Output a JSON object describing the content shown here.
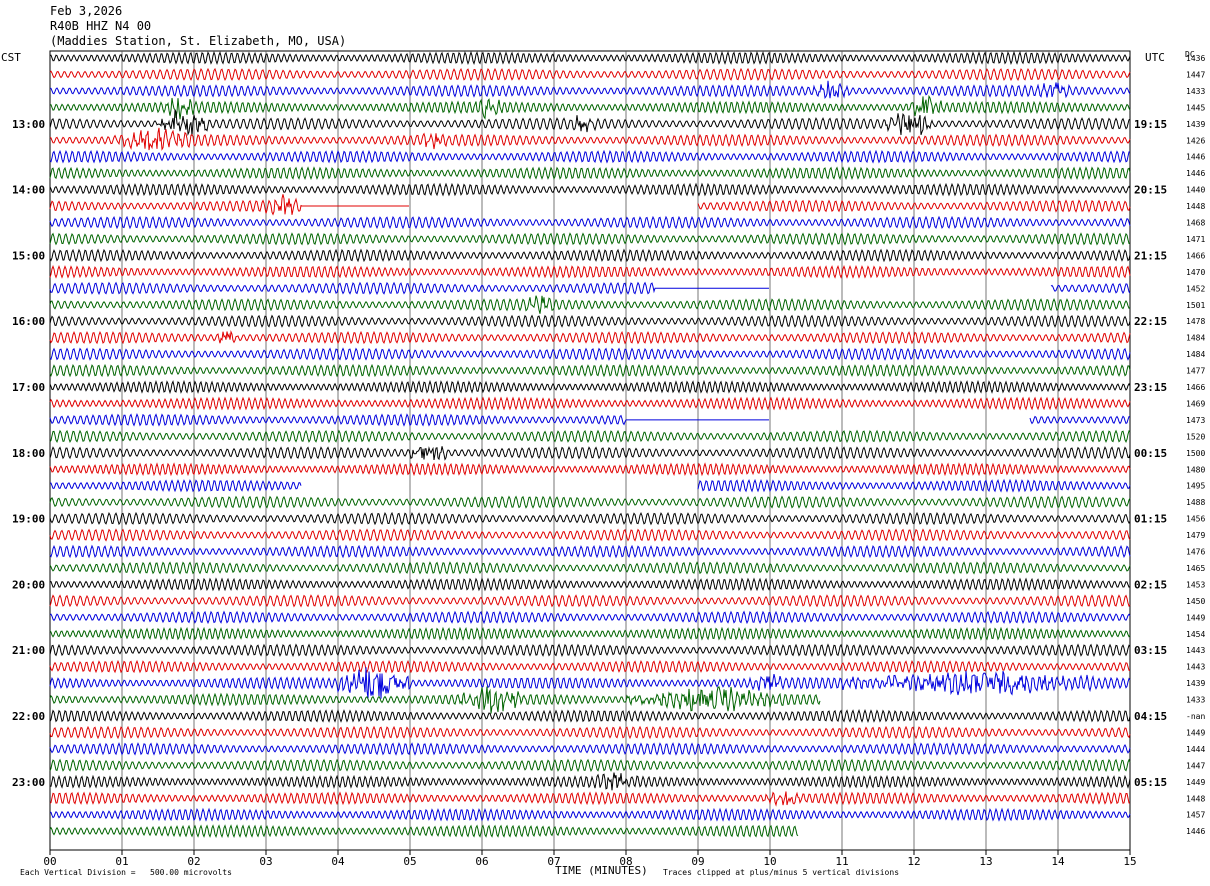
{
  "header": {
    "date": "Feb 3,2026",
    "station_code": "R40B HHZ N4 00",
    "station_name": "(Maddies Station, St. Elizabeth, MO, USA)"
  },
  "left_tz": "CST",
  "right_tz": "UTC",
  "dc_label": "DC",
  "footer": {
    "scale": "Each Vertical Division =   500.00 microvolts",
    "xlabel": "TIME (MINUTES)",
    "clip": "Traces clipped at plus/minus 5 vertical divisions"
  },
  "colors": [
    "#000000",
    "#e00000",
    "#0000dd",
    "#006400"
  ],
  "chart_data": {
    "type": "line",
    "title": "R40B HHZ N4 00",
    "xlabel": "TIME (MINUTES)",
    "xlim": [
      0,
      15
    ],
    "x_ticks": [
      "00",
      "01",
      "02",
      "03",
      "04",
      "05",
      "06",
      "07",
      "08",
      "09",
      "10",
      "11",
      "12",
      "13",
      "14",
      "15"
    ],
    "left_hour_labels": [
      "13:00",
      "14:00",
      "15:00",
      "16:00",
      "17:00",
      "18:00",
      "19:00",
      "20:00",
      "21:00",
      "22:00",
      "23:00"
    ],
    "right_hour_labels": [
      "19:15",
      "20:15",
      "21:15",
      "22:15",
      "23:15",
      "00:15",
      "01:15",
      "02:15",
      "03:15",
      "04:15",
      "05:15"
    ],
    "dc_offsets": [
      "1436",
      "1447",
      "1433",
      "1445",
      "1439",
      "1426",
      "1446",
      "1446",
      "1440",
      "1448",
      "1468",
      "1471",
      "1466",
      "1470",
      "1452",
      "1501",
      "1478",
      "1484",
      "1484",
      "1477",
      "1466",
      "1469",
      "1473",
      "1520",
      "1500",
      "1480",
      "1495",
      "1488",
      "1456",
      "1479",
      "1476",
      "1465",
      "1453",
      "1450",
      "1449",
      "1454",
      "1443",
      "1443",
      "1439",
      "1433",
      "-nan",
      "1449",
      "1444",
      "1447",
      "1449",
      "1448",
      "1457",
      "1446"
    ],
    "trace_count": 48,
    "traces_per_hour": 4,
    "events": [
      {
        "trace": 2,
        "start": 10.6,
        "end": 11.1,
        "amp": 2.2
      },
      {
        "trace": 2,
        "start": 13.7,
        "end": 14.2,
        "amp": 1.6
      },
      {
        "trace": 3,
        "start": 1.6,
        "end": 2.0,
        "amp": 2.5
      },
      {
        "trace": 3,
        "start": 5.9,
        "end": 6.3,
        "amp": 2.2
      },
      {
        "trace": 3,
        "start": 11.9,
        "end": 12.4,
        "amp": 2.4
      },
      {
        "trace": 4,
        "start": 1.5,
        "end": 2.2,
        "amp": 3.5
      },
      {
        "trace": 4,
        "start": 11.6,
        "end": 12.3,
        "amp": 3.0
      },
      {
        "trace": 4,
        "start": 7.2,
        "end": 7.6,
        "amp": 1.6
      },
      {
        "trace": 5,
        "start": 0.9,
        "end": 2.0,
        "amp": 2.0
      },
      {
        "trace": 5,
        "start": 5.1,
        "end": 5.6,
        "amp": 1.4
      },
      {
        "trace": 9,
        "start": 3.0,
        "end": 3.5,
        "amp": 1.6
      },
      {
        "trace": 15,
        "start": 6.6,
        "end": 7.0,
        "amp": 1.4
      },
      {
        "trace": 17,
        "start": 2.3,
        "end": 2.6,
        "amp": 2.0
      },
      {
        "trace": 24,
        "start": 5.0,
        "end": 5.5,
        "amp": 3.0
      },
      {
        "trace": 38,
        "start": 4.0,
        "end": 5.0,
        "amp": 4.0
      },
      {
        "trace": 38,
        "start": 11.0,
        "end": 14.6,
        "amp": 2.2
      },
      {
        "trace": 38,
        "start": 9.7,
        "end": 10.3,
        "amp": 1.5
      },
      {
        "trace": 39,
        "start": 5.7,
        "end": 6.6,
        "amp": 2.6
      },
      {
        "trace": 39,
        "start": 8.0,
        "end": 10.2,
        "amp": 2.3
      },
      {
        "trace": 44,
        "start": 7.5,
        "end": 8.2,
        "amp": 1.2
      },
      {
        "trace": 45,
        "start": 9.9,
        "end": 10.5,
        "amp": 1.2
      }
    ],
    "gaps": [
      {
        "trace": 9,
        "start": 3.5,
        "end": 9.0,
        "flat_until": 5.0
      },
      {
        "trace": 14,
        "start": 8.4,
        "end": 13.9,
        "flat_until": 10.0
      },
      {
        "trace": 26,
        "start": 3.5,
        "end": 9.0,
        "flat_until": 3.5
      },
      {
        "trace": 26,
        "start": 0.0,
        "end": 0.0,
        "flat_until": 0.0
      },
      {
        "trace": 22,
        "start": 8.0,
        "end": 13.6,
        "flat_until": 10.0
      },
      {
        "trace": 39,
        "start": 10.7,
        "end": 15.0,
        "flat_until": 10.7
      },
      {
        "trace": 47,
        "start": 10.4,
        "end": 15.0,
        "flat_until": 10.4
      }
    ]
  }
}
